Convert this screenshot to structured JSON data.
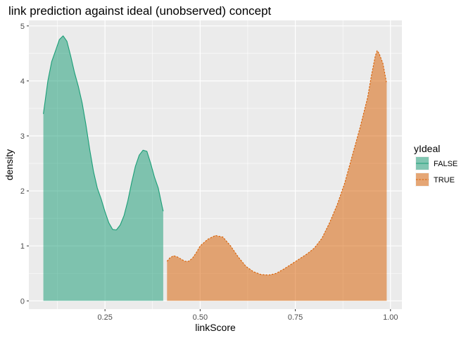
{
  "chart_data": {
    "type": "area",
    "title": "link prediction against ideal (unobserved) concept",
    "xlabel": "linkScore",
    "ylabel": "density",
    "xlim": [
      0.05,
      1.03
    ],
    "ylim": [
      -0.15,
      5.1
    ],
    "x_ticks": [
      0.25,
      0.5,
      0.75,
      1.0
    ],
    "x_tick_labels": [
      "0.25",
      "0.50",
      "0.75",
      "1.00"
    ],
    "y_ticks": [
      0,
      1,
      2,
      3,
      4,
      5
    ],
    "y_tick_labels": [
      "0",
      "1",
      "2",
      "3",
      "4",
      "5"
    ],
    "grid": true,
    "legend": {
      "title": "yIdeal",
      "position": "right",
      "entries": [
        "FALSE",
        "TRUE"
      ]
    },
    "series": [
      {
        "name": "FALSE",
        "color": "#1b9e77",
        "line_style": "solid",
        "x": [
          0.088,
          0.1,
          0.11,
          0.12,
          0.13,
          0.14,
          0.15,
          0.16,
          0.17,
          0.18,
          0.19,
          0.2,
          0.21,
          0.22,
          0.23,
          0.24,
          0.25,
          0.26,
          0.27,
          0.28,
          0.29,
          0.3,
          0.31,
          0.32,
          0.33,
          0.34,
          0.35,
          0.36,
          0.37,
          0.38,
          0.39,
          0.4,
          0.403
        ],
        "y": [
          3.4,
          4.0,
          4.35,
          4.55,
          4.75,
          4.82,
          4.72,
          4.45,
          4.15,
          3.9,
          3.6,
          3.2,
          2.75,
          2.35,
          2.05,
          1.85,
          1.62,
          1.42,
          1.3,
          1.29,
          1.38,
          1.55,
          1.82,
          2.15,
          2.45,
          2.65,
          2.74,
          2.72,
          2.5,
          2.25,
          2.05,
          1.72,
          1.63
        ]
      },
      {
        "name": "TRUE",
        "color": "#d95f02",
        "line_style": "dashed",
        "x": [
          0.413,
          0.42,
          0.43,
          0.44,
          0.45,
          0.46,
          0.47,
          0.48,
          0.49,
          0.5,
          0.52,
          0.54,
          0.56,
          0.58,
          0.6,
          0.62,
          0.64,
          0.66,
          0.68,
          0.7,
          0.72,
          0.74,
          0.76,
          0.78,
          0.8,
          0.82,
          0.84,
          0.86,
          0.88,
          0.9,
          0.92,
          0.94,
          0.95,
          0.96,
          0.965,
          0.97,
          0.98,
          0.99
        ],
        "y": [
          0.72,
          0.78,
          0.82,
          0.8,
          0.76,
          0.72,
          0.72,
          0.78,
          0.88,
          1.0,
          1.12,
          1.19,
          1.16,
          1.0,
          0.8,
          0.63,
          0.53,
          0.48,
          0.47,
          0.5,
          0.58,
          0.67,
          0.76,
          0.85,
          0.96,
          1.14,
          1.42,
          1.75,
          2.15,
          2.65,
          3.15,
          3.7,
          4.1,
          4.45,
          4.55,
          4.5,
          4.32,
          3.95
        ]
      }
    ]
  }
}
